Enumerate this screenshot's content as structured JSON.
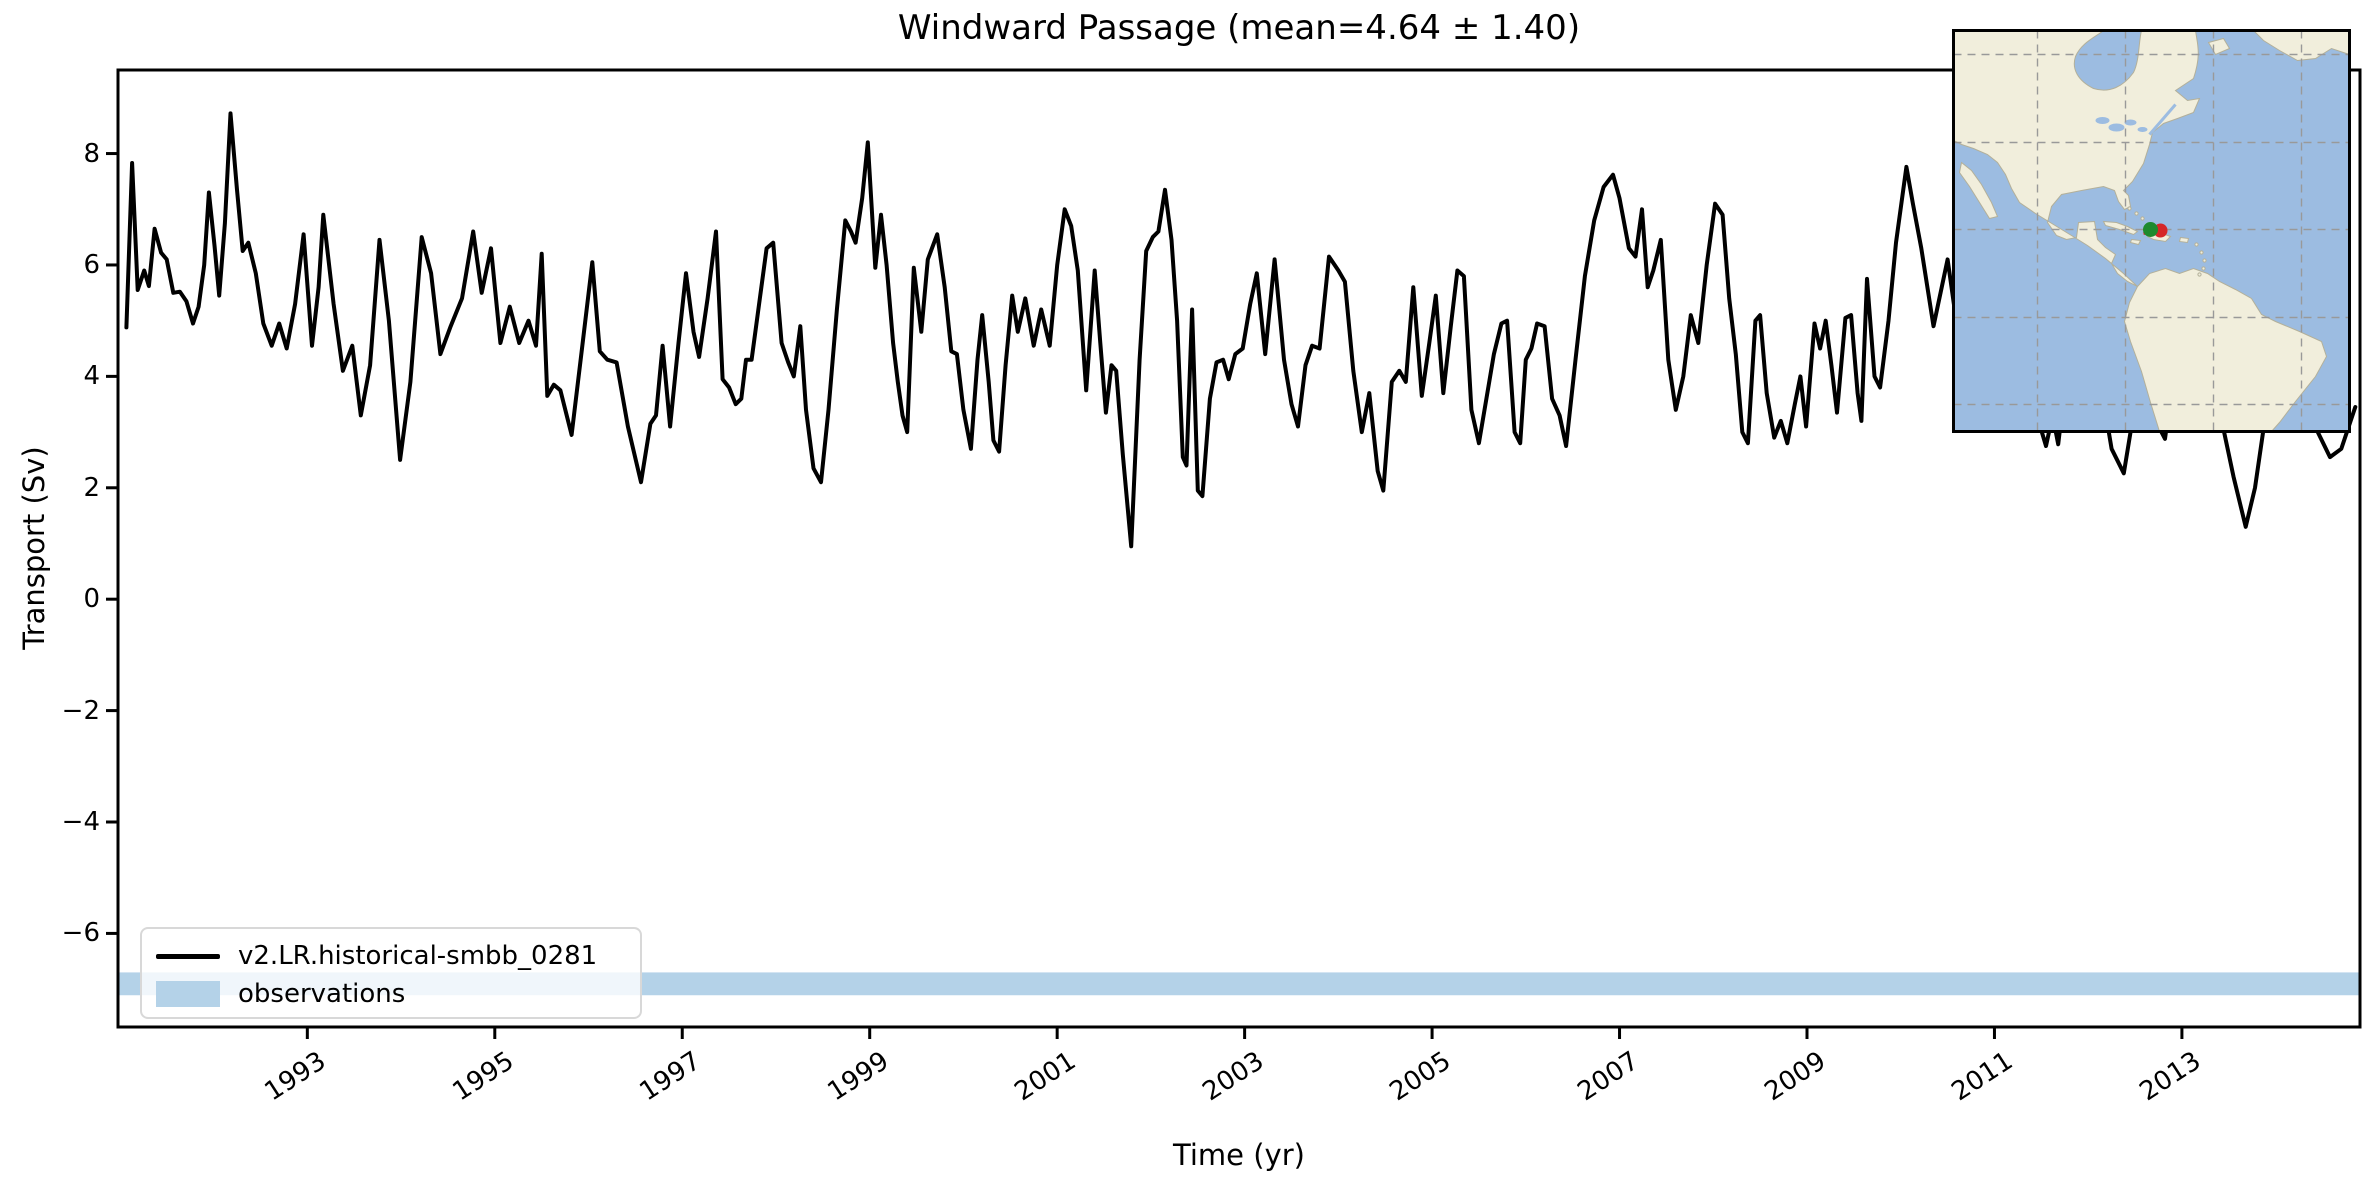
{
  "figure": {
    "title": "Windward Passage (mean=4.64 ± 1.40)"
  },
  "axes": {
    "xlabel": "Time (yr)",
    "ylabel": "Transport (Sv)",
    "x_tick_labels": [
      "1993",
      "1995",
      "1997",
      "1999",
      "2001",
      "2003",
      "2005",
      "2007",
      "2009",
      "2011",
      "2013"
    ],
    "x_tick_values": [
      1993,
      1995,
      1997,
      1999,
      2001,
      2003,
      2005,
      2007,
      2009,
      2011,
      2013
    ],
    "y_tick_labels": [
      "8",
      "6",
      "4",
      "2",
      "0",
      "−2",
      "−4",
      "−6"
    ],
    "y_tick_values": [
      8,
      6,
      4,
      2,
      0,
      -2,
      -4,
      -6
    ]
  },
  "legend": {
    "entries": [
      {
        "label": "v2.LR.historical-smbb_0281",
        "type": "line",
        "color": "#000000"
      },
      {
        "label": "observations",
        "type": "patch",
        "color": "#b4d2e8"
      }
    ]
  },
  "colors": {
    "series_line": "#000000",
    "observations_band": "#b4d2e8",
    "map_ocean": "#9cbce1",
    "map_land": "#f1eedc",
    "map_grid": "#999999",
    "marker_red": "#d62728",
    "marker_green": "#1e8a2e",
    "spine": "#000000"
  },
  "chart_data": {
    "type": "line",
    "title": "Windward Passage (mean=4.64 ± 1.40)",
    "xlabel": "Time (yr)",
    "ylabel": "Transport (Sv)",
    "xlim": [
      1990.98,
      2014.9
    ],
    "ylim": [
      -7.68,
      9.5
    ],
    "grid": false,
    "legend_position": "lower left",
    "mean": 4.64,
    "std": 1.4,
    "observations_band": {
      "ymin": -7.11,
      "ymax": -6.7
    },
    "series": [
      {
        "name": "v2.LR.historical-smbb_0281",
        "points": [
          [
            1991.07,
            4.88
          ],
          [
            1991.13,
            7.83
          ],
          [
            1991.19,
            5.55
          ],
          [
            1991.26,
            5.9
          ],
          [
            1991.31,
            5.62
          ],
          [
            1991.37,
            6.65
          ],
          [
            1991.44,
            6.22
          ],
          [
            1991.5,
            6.1
          ],
          [
            1991.57,
            5.5
          ],
          [
            1991.64,
            5.52
          ],
          [
            1991.71,
            5.35
          ],
          [
            1991.78,
            4.95
          ],
          [
            1991.84,
            5.25
          ],
          [
            1991.9,
            6.0
          ],
          [
            1991.95,
            7.3
          ],
          [
            1992.01,
            6.35
          ],
          [
            1992.06,
            5.45
          ],
          [
            1992.12,
            6.75
          ],
          [
            1992.18,
            8.72
          ],
          [
            1992.25,
            7.35
          ],
          [
            1992.31,
            6.25
          ],
          [
            1992.37,
            6.4
          ],
          [
            1992.45,
            5.85
          ],
          [
            1992.53,
            4.95
          ],
          [
            1992.62,
            4.55
          ],
          [
            1992.7,
            4.95
          ],
          [
            1992.78,
            4.5
          ],
          [
            1992.87,
            5.3
          ],
          [
            1992.96,
            6.55
          ],
          [
            1993.05,
            4.55
          ],
          [
            1993.12,
            5.6
          ],
          [
            1993.17,
            6.9
          ],
          [
            1993.28,
            5.3
          ],
          [
            1993.38,
            4.1
          ],
          [
            1993.48,
            4.55
          ],
          [
            1993.57,
            3.3
          ],
          [
            1993.67,
            4.2
          ],
          [
            1993.77,
            6.45
          ],
          [
            1993.87,
            5.0
          ],
          [
            1993.99,
            2.5
          ],
          [
            1994.1,
            3.9
          ],
          [
            1994.22,
            6.5
          ],
          [
            1994.32,
            5.85
          ],
          [
            1994.42,
            4.4
          ],
          [
            1994.53,
            4.9
          ],
          [
            1994.65,
            5.4
          ],
          [
            1994.77,
            6.6
          ],
          [
            1994.86,
            5.5
          ],
          [
            1994.96,
            6.3
          ],
          [
            1995.06,
            4.6
          ],
          [
            1995.16,
            5.25
          ],
          [
            1995.26,
            4.6
          ],
          [
            1995.36,
            5.0
          ],
          [
            1995.44,
            4.55
          ],
          [
            1995.5,
            6.2
          ],
          [
            1995.56,
            3.65
          ],
          [
            1995.63,
            3.85
          ],
          [
            1995.7,
            3.75
          ],
          [
            1995.82,
            2.95
          ],
          [
            1995.93,
            4.5
          ],
          [
            1996.04,
            6.05
          ],
          [
            1996.12,
            4.45
          ],
          [
            1996.2,
            4.3
          ],
          [
            1996.3,
            4.25
          ],
          [
            1996.42,
            3.1
          ],
          [
            1996.56,
            2.1
          ],
          [
            1996.66,
            3.15
          ],
          [
            1996.72,
            3.3
          ],
          [
            1996.79,
            4.55
          ],
          [
            1996.87,
            3.1
          ],
          [
            1996.96,
            4.6
          ],
          [
            1997.04,
            5.85
          ],
          [
            1997.12,
            4.8
          ],
          [
            1997.18,
            4.35
          ],
          [
            1997.27,
            5.4
          ],
          [
            1997.36,
            6.6
          ],
          [
            1997.43,
            3.95
          ],
          [
            1997.5,
            3.8
          ],
          [
            1997.57,
            3.5
          ],
          [
            1997.63,
            3.6
          ],
          [
            1997.68,
            4.3
          ],
          [
            1997.74,
            4.3
          ],
          [
            1997.82,
            5.3
          ],
          [
            1997.9,
            6.3
          ],
          [
            1997.97,
            6.4
          ],
          [
            1998.06,
            4.6
          ],
          [
            1998.13,
            4.25
          ],
          [
            1998.19,
            4.0
          ],
          [
            1998.26,
            4.9
          ],
          [
            1998.32,
            3.4
          ],
          [
            1998.4,
            2.35
          ],
          [
            1998.48,
            2.1
          ],
          [
            1998.56,
            3.4
          ],
          [
            1998.65,
            5.2
          ],
          [
            1998.74,
            6.8
          ],
          [
            1998.8,
            6.6
          ],
          [
            1998.85,
            6.4
          ],
          [
            1998.92,
            7.2
          ],
          [
            1998.98,
            8.2
          ],
          [
            1999.06,
            5.95
          ],
          [
            1999.12,
            6.9
          ],
          [
            1999.18,
            6.0
          ],
          [
            1999.25,
            4.6
          ],
          [
            1999.3,
            3.9
          ],
          [
            1999.35,
            3.3
          ],
          [
            1999.4,
            3.0
          ],
          [
            1999.47,
            5.95
          ],
          [
            1999.55,
            4.8
          ],
          [
            1999.62,
            6.1
          ],
          [
            1999.72,
            6.55
          ],
          [
            1999.8,
            5.6
          ],
          [
            1999.87,
            4.45
          ],
          [
            1999.93,
            4.4
          ],
          [
            2000.0,
            3.4
          ],
          [
            2000.08,
            2.7
          ],
          [
            2000.15,
            4.3
          ],
          [
            2000.2,
            5.1
          ],
          [
            2000.27,
            3.9
          ],
          [
            2000.32,
            2.85
          ],
          [
            2000.38,
            2.65
          ],
          [
            2000.45,
            4.2
          ],
          [
            2000.52,
            5.45
          ],
          [
            2000.58,
            4.8
          ],
          [
            2000.66,
            5.4
          ],
          [
            2000.75,
            4.55
          ],
          [
            2000.83,
            5.2
          ],
          [
            2000.92,
            4.55
          ],
          [
            2001.0,
            6.0
          ],
          [
            2001.08,
            7.0
          ],
          [
            2001.15,
            6.7
          ],
          [
            2001.22,
            5.9
          ],
          [
            2001.31,
            3.75
          ],
          [
            2001.4,
            5.9
          ],
          [
            2001.46,
            4.6
          ],
          [
            2001.52,
            3.35
          ],
          [
            2001.58,
            4.2
          ],
          [
            2001.63,
            4.1
          ],
          [
            2001.7,
            2.6
          ],
          [
            2001.79,
            0.95
          ],
          [
            2001.88,
            4.3
          ],
          [
            2001.95,
            6.25
          ],
          [
            2002.02,
            6.5
          ],
          [
            2002.08,
            6.6
          ],
          [
            2002.15,
            7.35
          ],
          [
            2002.22,
            6.45
          ],
          [
            2002.28,
            5.0
          ],
          [
            2002.34,
            2.55
          ],
          [
            2002.38,
            2.4
          ],
          [
            2002.44,
            5.2
          ],
          [
            2002.5,
            1.95
          ],
          [
            2002.55,
            1.85
          ],
          [
            2002.63,
            3.6
          ],
          [
            2002.7,
            4.25
          ],
          [
            2002.77,
            4.3
          ],
          [
            2002.83,
            3.95
          ],
          [
            2002.9,
            4.4
          ],
          [
            2002.98,
            4.5
          ],
          [
            2003.06,
            5.3
          ],
          [
            2003.13,
            5.85
          ],
          [
            2003.22,
            4.4
          ],
          [
            2003.32,
            6.1
          ],
          [
            2003.42,
            4.3
          ],
          [
            2003.5,
            3.5
          ],
          [
            2003.57,
            3.1
          ],
          [
            2003.65,
            4.2
          ],
          [
            2003.72,
            4.55
          ],
          [
            2003.8,
            4.5
          ],
          [
            2003.9,
            6.15
          ],
          [
            2004.0,
            5.9
          ],
          [
            2004.07,
            5.7
          ],
          [
            2004.16,
            4.1
          ],
          [
            2004.25,
            3.0
          ],
          [
            2004.33,
            3.7
          ],
          [
            2004.42,
            2.3
          ],
          [
            2004.48,
            1.95
          ],
          [
            2004.57,
            3.9
          ],
          [
            2004.65,
            4.1
          ],
          [
            2004.72,
            3.9
          ],
          [
            2004.8,
            5.6
          ],
          [
            2004.89,
            3.65
          ],
          [
            2004.97,
            4.6
          ],
          [
            2005.04,
            5.45
          ],
          [
            2005.12,
            3.7
          ],
          [
            2005.2,
            4.9
          ],
          [
            2005.27,
            5.9
          ],
          [
            2005.34,
            5.8
          ],
          [
            2005.42,
            3.4
          ],
          [
            2005.5,
            2.8
          ],
          [
            2005.58,
            3.6
          ],
          [
            2005.66,
            4.4
          ],
          [
            2005.74,
            4.95
          ],
          [
            2005.8,
            5.0
          ],
          [
            2005.88,
            3.0
          ],
          [
            2005.94,
            2.8
          ],
          [
            2006.0,
            4.3
          ],
          [
            2006.06,
            4.5
          ],
          [
            2006.12,
            4.95
          ],
          [
            2006.2,
            4.9
          ],
          [
            2006.28,
            3.6
          ],
          [
            2006.36,
            3.3
          ],
          [
            2006.43,
            2.75
          ],
          [
            2006.53,
            4.3
          ],
          [
            2006.63,
            5.8
          ],
          [
            2006.73,
            6.8
          ],
          [
            2006.83,
            7.4
          ],
          [
            2006.93,
            7.62
          ],
          [
            2007.0,
            7.2
          ],
          [
            2007.1,
            6.3
          ],
          [
            2007.17,
            6.15
          ],
          [
            2007.24,
            7.0
          ],
          [
            2007.3,
            5.6
          ],
          [
            2007.36,
            5.9
          ],
          [
            2007.44,
            6.45
          ],
          [
            2007.52,
            4.3
          ],
          [
            2007.6,
            3.4
          ],
          [
            2007.68,
            4.0
          ],
          [
            2007.76,
            5.1
          ],
          [
            2007.84,
            4.6
          ],
          [
            2007.93,
            6.0
          ],
          [
            2008.02,
            7.1
          ],
          [
            2008.1,
            6.9
          ],
          [
            2008.17,
            5.4
          ],
          [
            2008.24,
            4.4
          ],
          [
            2008.31,
            3.0
          ],
          [
            2008.37,
            2.8
          ],
          [
            2008.45,
            5.0
          ],
          [
            2008.5,
            5.1
          ],
          [
            2008.57,
            3.7
          ],
          [
            2008.65,
            2.9
          ],
          [
            2008.72,
            3.2
          ],
          [
            2008.79,
            2.8
          ],
          [
            2008.87,
            3.5
          ],
          [
            2008.93,
            4.0
          ],
          [
            2008.99,
            3.1
          ],
          [
            2009.08,
            4.95
          ],
          [
            2009.14,
            4.5
          ],
          [
            2009.2,
            5.0
          ],
          [
            2009.26,
            4.2
          ],
          [
            2009.32,
            3.35
          ],
          [
            2009.41,
            5.05
          ],
          [
            2009.47,
            5.1
          ],
          [
            2009.54,
            3.7
          ],
          [
            2009.58,
            3.2
          ],
          [
            2009.64,
            5.75
          ],
          [
            2009.72,
            4.0
          ],
          [
            2009.78,
            3.8
          ],
          [
            2009.87,
            5.0
          ],
          [
            2009.95,
            6.4
          ],
          [
            2010.06,
            7.76
          ],
          [
            2010.13,
            7.1
          ],
          [
            2010.22,
            6.3
          ],
          [
            2010.35,
            4.9
          ],
          [
            2010.5,
            6.1
          ],
          [
            2010.65,
            4.3
          ],
          [
            2010.8,
            5.5
          ],
          [
            2010.95,
            4.6
          ],
          [
            2011.1,
            5.2
          ],
          [
            2011.25,
            4.3
          ],
          [
            2011.4,
            3.6
          ],
          [
            2011.55,
            2.75
          ],
          [
            2011.62,
            3.3
          ],
          [
            2011.68,
            2.78
          ],
          [
            2011.8,
            4.5
          ],
          [
            2011.95,
            5.3
          ],
          [
            2012.1,
            4.2
          ],
          [
            2012.25,
            2.7
          ],
          [
            2012.38,
            2.26
          ],
          [
            2012.5,
            3.5
          ],
          [
            2012.62,
            4.4
          ],
          [
            2012.72,
            3.2
          ],
          [
            2012.82,
            2.88
          ],
          [
            2012.95,
            4.5
          ],
          [
            2013.1,
            5.5
          ],
          [
            2013.25,
            4.6
          ],
          [
            2013.4,
            3.4
          ],
          [
            2013.55,
            2.2
          ],
          [
            2013.68,
            1.3
          ],
          [
            2013.78,
            2.0
          ],
          [
            2013.9,
            3.4
          ],
          [
            2014.05,
            4.6
          ],
          [
            2014.2,
            5.1
          ],
          [
            2014.32,
            3.9
          ],
          [
            2014.45,
            3.0
          ],
          [
            2014.58,
            2.55
          ],
          [
            2014.7,
            2.7
          ],
          [
            2014.85,
            3.45
          ]
        ]
      }
    ]
  },
  "map_inset": {
    "description": "Americas location map with Windward Passage marker",
    "gridline_style": "dashed",
    "marker": {
      "site": "windward-passage"
    }
  }
}
